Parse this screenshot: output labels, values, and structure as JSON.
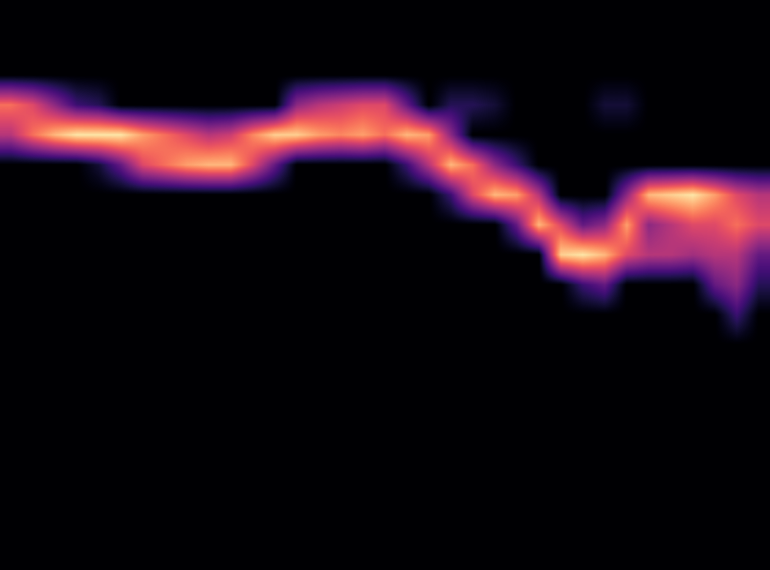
{
  "chart_data": {
    "type": "heatmap",
    "color": "magma",
    "tick_labels": false,
    "value_range": [
      0,
      1
    ],
    "cells": [
      [
        0,
        0,
        0,
        0,
        0,
        0,
        0,
        0,
        0,
        0,
        0,
        0,
        0,
        0,
        0,
        0,
        0,
        0,
        0,
        0,
        0,
        0,
        0,
        0,
        0,
        0,
        0,
        0,
        0,
        0,
        0,
        0,
        0,
        0,
        0
      ],
      [
        0,
        0,
        0,
        0,
        0,
        0,
        0,
        0,
        0,
        0,
        0,
        0,
        0,
        0,
        0,
        0,
        0,
        0,
        0,
        0,
        0,
        0,
        0,
        0,
        0,
        0,
        0,
        0,
        0,
        0,
        0,
        0,
        0,
        0,
        0
      ],
      [
        0,
        0,
        0,
        0,
        0,
        0,
        0,
        0,
        0,
        0,
        0,
        0,
        0,
        0,
        0,
        0,
        0,
        0,
        0,
        0,
        0,
        0,
        0,
        0,
        0,
        0,
        0,
        0,
        0,
        0,
        0,
        0,
        0,
        0,
        0
      ],
      [
        0.7,
        0.6,
        0.4,
        0.2,
        0.15,
        0,
        0,
        0,
        0,
        0,
        0,
        0,
        0,
        0.4,
        0.5,
        0.55,
        0.6,
        0.6,
        0.3,
        0,
        0.15,
        0.15,
        0.1,
        0,
        0,
        0,
        0,
        0.1,
        0.1,
        0,
        0,
        0,
        0,
        0,
        0
      ],
      [
        0.5,
        0.7,
        0.85,
        0.95,
        0.95,
        0.95,
        0.8,
        0.7,
        0.6,
        0.5,
        0.55,
        0.75,
        0.9,
        0.9,
        0.8,
        0.75,
        0.8,
        0.7,
        0.85,
        0.8,
        0.4,
        0,
        0,
        0,
        0,
        0,
        0,
        0,
        0,
        0,
        0,
        0,
        0,
        0,
        0
      ],
      [
        0,
        0,
        0,
        0,
        0.1,
        0.3,
        0.6,
        0.7,
        0.8,
        0.85,
        0.85,
        0.6,
        0.3,
        0,
        0,
        0,
        0,
        0,
        0.2,
        0.5,
        0.85,
        0.7,
        0.4,
        0.2,
        0,
        0,
        0,
        0,
        0,
        0,
        0,
        0,
        0,
        0,
        0
      ],
      [
        0,
        0,
        0,
        0,
        0,
        0,
        0,
        0,
        0,
        0,
        0,
        0,
        0,
        0,
        0,
        0,
        0,
        0,
        0,
        0,
        0.2,
        0.6,
        0.85,
        0.8,
        0.5,
        0,
        0,
        0,
        0.4,
        0.85,
        0.9,
        0.95,
        0.8,
        0.6,
        0.5
      ],
      [
        0,
        0,
        0,
        0,
        0,
        0,
        0,
        0,
        0,
        0,
        0,
        0,
        0,
        0,
        0,
        0,
        0,
        0,
        0,
        0,
        0,
        0,
        0,
        0.3,
        0.85,
        0.6,
        0.3,
        0.4,
        0.8,
        0.4,
        0.5,
        0.6,
        0.6,
        0.7,
        0.6
      ],
      [
        0,
        0,
        0,
        0,
        0,
        0,
        0,
        0,
        0,
        0,
        0,
        0,
        0,
        0,
        0,
        0,
        0,
        0,
        0,
        0,
        0,
        0,
        0,
        0,
        0,
        0.9,
        0.95,
        0.85,
        0.6,
        0.5,
        0.5,
        0.45,
        0.5,
        0.5,
        0.3
      ],
      [
        0,
        0,
        0,
        0,
        0,
        0,
        0,
        0,
        0,
        0,
        0,
        0,
        0,
        0,
        0,
        0,
        0,
        0,
        0,
        0,
        0,
        0,
        0,
        0,
        0,
        0,
        0.2,
        0.3,
        0,
        0,
        0,
        0,
        0.3,
        0.4,
        0.15
      ],
      [
        0,
        0,
        0,
        0,
        0,
        0,
        0,
        0,
        0,
        0,
        0,
        0,
        0,
        0,
        0,
        0,
        0,
        0,
        0,
        0,
        0,
        0,
        0,
        0,
        0,
        0,
        0,
        0,
        0,
        0,
        0,
        0,
        0,
        0.2,
        0
      ],
      [
        0,
        0,
        0,
        0,
        0,
        0,
        0,
        0,
        0,
        0,
        0,
        0,
        0,
        0,
        0,
        0,
        0,
        0,
        0,
        0,
        0,
        0,
        0,
        0,
        0,
        0,
        0,
        0,
        0,
        0,
        0,
        0,
        0,
        0,
        0
      ],
      [
        0,
        0,
        0,
        0,
        0,
        0,
        0,
        0,
        0,
        0,
        0,
        0,
        0,
        0,
        0,
        0,
        0,
        0,
        0,
        0,
        0,
        0,
        0,
        0,
        0,
        0,
        0,
        0,
        0,
        0,
        0,
        0,
        0,
        0,
        0
      ],
      [
        0,
        0,
        0,
        0,
        0,
        0,
        0,
        0,
        0,
        0,
        0,
        0,
        0,
        0,
        0,
        0,
        0,
        0,
        0,
        0,
        0,
        0,
        0,
        0,
        0,
        0,
        0,
        0,
        0,
        0,
        0,
        0,
        0,
        0,
        0
      ],
      [
        0,
        0,
        0,
        0,
        0,
        0,
        0,
        0,
        0,
        0,
        0,
        0,
        0,
        0,
        0,
        0,
        0,
        0,
        0,
        0,
        0,
        0,
        0,
        0,
        0,
        0,
        0,
        0,
        0,
        0,
        0,
        0,
        0,
        0,
        0
      ],
      [
        0,
        0,
        0,
        0,
        0,
        0,
        0,
        0,
        0,
        0,
        0,
        0,
        0,
        0,
        0,
        0,
        0,
        0,
        0,
        0,
        0,
        0,
        0,
        0,
        0,
        0,
        0,
        0,
        0,
        0,
        0,
        0,
        0,
        0,
        0
      ],
      [
        0,
        0,
        0,
        0,
        0,
        0,
        0,
        0,
        0,
        0,
        0,
        0,
        0,
        0,
        0,
        0,
        0,
        0,
        0,
        0,
        0,
        0,
        0,
        0,
        0,
        0,
        0,
        0,
        0,
        0,
        0,
        0,
        0,
        0,
        0
      ],
      [
        0,
        0,
        0,
        0,
        0,
        0,
        0,
        0,
        0,
        0,
        0,
        0,
        0,
        0,
        0,
        0,
        0,
        0,
        0,
        0,
        0,
        0,
        0,
        0,
        0,
        0,
        0,
        0,
        0,
        0,
        0,
        0,
        0,
        0,
        0
      ],
      [
        0,
        0,
        0,
        0,
        0,
        0,
        0,
        0,
        0,
        0,
        0,
        0,
        0,
        0,
        0,
        0,
        0,
        0,
        0,
        0,
        0,
        0,
        0,
        0,
        0,
        0,
        0,
        0,
        0,
        0,
        0,
        0,
        0,
        0,
        0
      ]
    ]
  }
}
